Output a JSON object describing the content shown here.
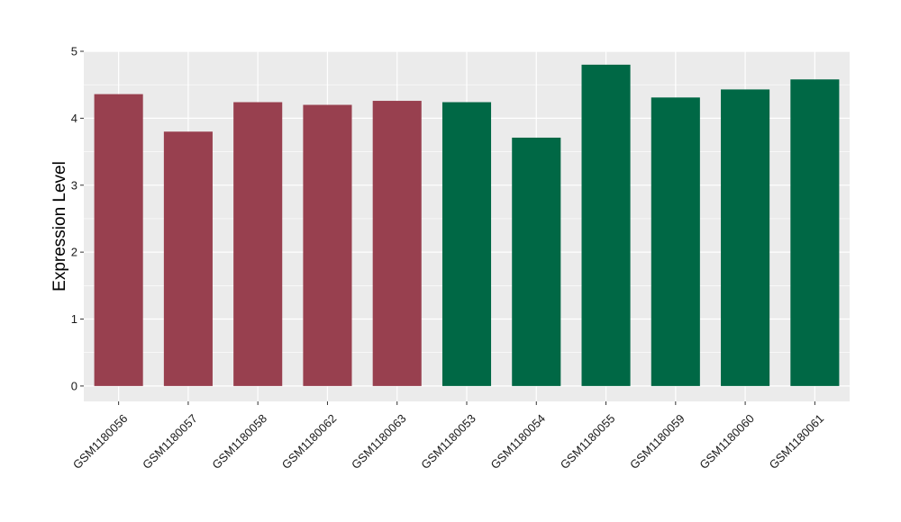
{
  "chart_data": {
    "type": "bar",
    "title": "",
    "xlabel": "",
    "ylabel": "Expression Level",
    "ylim": [
      -0.23,
      5
    ],
    "yticks": [
      0,
      1,
      2,
      3,
      4,
      5
    ],
    "grid": true,
    "legend": "none",
    "categories": [
      "GSM1180056",
      "GSM1180057",
      "GSM1180058",
      "GSM1180062",
      "GSM1180063",
      "GSM1180053",
      "GSM1180054",
      "GSM1180055",
      "GSM1180059",
      "GSM1180060",
      "GSM1180061"
    ],
    "values": [
      4.36,
      3.8,
      4.24,
      4.2,
      4.26,
      4.24,
      3.71,
      4.8,
      4.31,
      4.43,
      4.58
    ],
    "group": [
      0,
      0,
      0,
      0,
      0,
      1,
      1,
      1,
      1,
      1,
      1
    ],
    "colors": {
      "group_0": "#98404F",
      "group_1": "#006845",
      "panel_background": "#EBEBEB",
      "grid": "#FFFFFF"
    }
  }
}
